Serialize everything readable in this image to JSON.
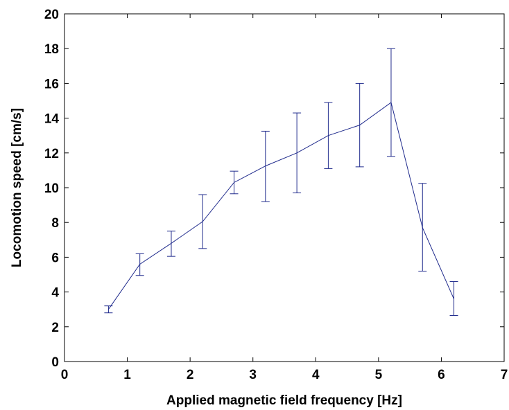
{
  "chart_data": {
    "type": "line",
    "title": "",
    "xlabel": "Applied magnetic field frequency [Hz]",
    "ylabel": "Locomotion speed [cm/s]",
    "xlim": [
      0,
      7
    ],
    "ylim": [
      0,
      20
    ],
    "x_ticks": [
      0,
      1,
      2,
      3,
      4,
      5,
      6,
      7
    ],
    "y_ticks": [
      0,
      2,
      4,
      6,
      8,
      10,
      12,
      14,
      16,
      18,
      20
    ],
    "x_tick_labels": [
      "0",
      "1",
      "2",
      "3",
      "4",
      "5",
      "6",
      "7"
    ],
    "y_tick_labels": [
      "0",
      "2",
      "4",
      "6",
      "8",
      "10",
      "12",
      "14",
      "16",
      "18",
      "20"
    ],
    "grid": false,
    "legend": "none",
    "line_color": "#1f2a8c",
    "series": [
      {
        "x": [
          0.7,
          1.2,
          1.7,
          2.2,
          2.7,
          3.2,
          3.7,
          4.2,
          4.7,
          5.2,
          5.7,
          6.2
        ],
        "y": [
          3.0,
          5.6,
          6.8,
          8.05,
          10.3,
          11.25,
          12.0,
          13.0,
          13.6,
          14.9,
          7.7,
          3.6
        ],
        "error_low": [
          2.8,
          4.95,
          6.05,
          6.5,
          9.65,
          9.2,
          9.7,
          11.1,
          11.2,
          11.8,
          5.2,
          2.65
        ],
        "error_high": [
          3.2,
          6.2,
          7.5,
          9.6,
          10.95,
          13.25,
          14.3,
          14.9,
          16.0,
          18.0,
          10.25,
          4.6
        ]
      }
    ]
  }
}
